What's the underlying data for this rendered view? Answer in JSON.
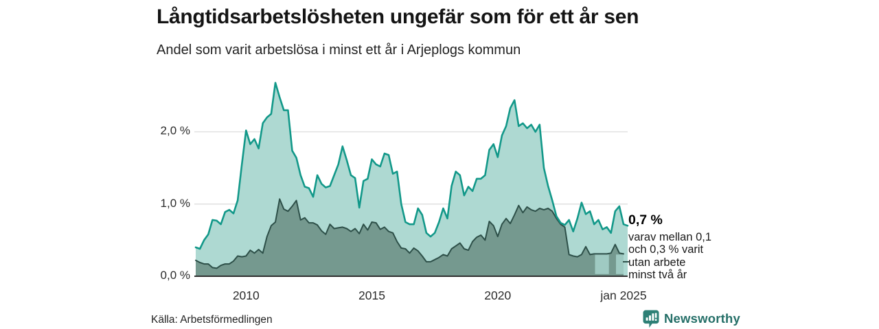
{
  "header": {
    "title": "Långtidsarbetslösheten ungefär som för ett år sen",
    "subtitle": "Andel som varit arbetslösa i minst ett år i Arjeplogs kommun"
  },
  "chart_data": {
    "type": "area",
    "unit": "%",
    "x_start": "2008-01",
    "x_end": "2025-01",
    "interval_months": 2,
    "ylim": [
      0,
      2.8
    ],
    "grid": true,
    "y_ticks": [
      {
        "label": "0,0 %",
        "value": 0
      },
      {
        "label": "1,0 %",
        "value": 1
      },
      {
        "label": "2,0 %",
        "value": 2
      }
    ],
    "x_ticks": [
      {
        "label": "2010",
        "month_index": 24
      },
      {
        "label": "2015",
        "month_index": 84
      },
      {
        "label": "2020",
        "month_index": 144
      },
      {
        "label": "jan 2025",
        "month_index": 204
      }
    ],
    "series": [
      {
        "name": "arbetslösa minst ett år",
        "values": [
          0.4,
          0.38,
          0.5,
          0.58,
          0.78,
          0.77,
          0.72,
          0.89,
          0.92,
          0.87,
          1.05,
          1.55,
          2.02,
          1.83,
          1.9,
          1.77,
          2.12,
          2.2,
          2.25,
          2.68,
          2.48,
          2.3,
          2.3,
          1.74,
          1.64,
          1.4,
          1.24,
          1.22,
          1.1,
          1.4,
          1.28,
          1.23,
          1.25,
          1.4,
          1.55,
          1.8,
          1.61,
          1.4,
          1.36,
          0.95,
          1.32,
          1.35,
          1.62,
          1.55,
          1.52,
          1.7,
          1.68,
          1.42,
          1.45,
          1.0,
          0.75,
          0.72,
          0.72,
          0.94,
          0.85,
          0.6,
          0.55,
          0.6,
          0.75,
          0.94,
          0.8,
          1.25,
          1.45,
          1.4,
          1.12,
          1.24,
          1.18,
          1.35,
          1.35,
          1.4,
          1.75,
          1.83,
          1.65,
          1.95,
          2.08,
          2.33,
          2.44,
          2.08,
          2.12,
          2.05,
          2.1,
          2.0,
          2.1,
          1.5,
          1.25,
          1.05,
          0.83,
          0.74,
          0.71,
          0.78,
          0.62,
          0.8,
          1.02,
          0.86,
          0.9,
          0.72,
          0.78,
          0.65,
          0.68,
          0.6,
          0.9,
          0.97,
          0.72
        ]
      },
      {
        "name": "varav arbetslösa minst två år",
        "values": [
          0.22,
          0.19,
          0.17,
          0.17,
          0.12,
          0.11,
          0.15,
          0.17,
          0.17,
          0.21,
          0.28,
          0.27,
          0.28,
          0.36,
          0.32,
          0.37,
          0.32,
          0.55,
          0.7,
          0.75,
          1.07,
          0.93,
          0.9,
          0.97,
          1.05,
          0.78,
          0.81,
          0.74,
          0.74,
          0.71,
          0.63,
          0.58,
          0.72,
          0.66,
          0.67,
          0.68,
          0.66,
          0.62,
          0.66,
          0.59,
          0.72,
          0.64,
          0.75,
          0.74,
          0.65,
          0.68,
          0.62,
          0.6,
          0.48,
          0.39,
          0.38,
          0.32,
          0.39,
          0.35,
          0.28,
          0.2,
          0.2,
          0.23,
          0.26,
          0.3,
          0.28,
          0.38,
          0.42,
          0.46,
          0.38,
          0.36,
          0.48,
          0.54,
          0.57,
          0.5,
          0.76,
          0.7,
          0.55,
          0.72,
          0.8,
          0.73,
          0.85,
          0.98,
          0.88,
          0.96,
          0.92,
          0.9,
          0.94,
          0.92,
          0.94,
          0.9,
          0.8,
          0.72,
          0.68,
          0.3,
          0.28,
          0.27,
          0.3,
          0.41,
          0.3,
          0.31,
          0.31,
          0.31,
          0.31,
          0.32,
          0.44,
          0.32,
          0.31
        ]
      }
    ],
    "censored_bands": [
      {
        "start_index": 95.2,
        "end_index": 98.5,
        "low": 0.03,
        "high": 0.3
      },
      {
        "start_index": 100.2,
        "end_index": 102,
        "low": 0.03,
        "high": 0.3
      }
    ],
    "end_values": {
      "total": "0,7 %",
      "two_year_range": "0,1–0,3 %"
    }
  },
  "annotation": {
    "value": "0,7 %",
    "note_lines": [
      "varav mellan 0,1",
      "och 0,3 % varit",
      "utan arbete",
      "minst två år"
    ]
  },
  "source": {
    "label": "Källa: Arbetsförmedlingen"
  },
  "branding": {
    "name": "Newsworthy"
  },
  "colors": {
    "line_total": "#129889",
    "fill_total": "#aed9d2",
    "line_two_year": "#2d4f48",
    "fill_two_year": "#75998f",
    "censored_band": "#9fcac2",
    "grid": "#dcdcdc",
    "axis": "#2f2f2f",
    "brand_icon": "#2e8076",
    "brand_text": "#256f68"
  }
}
